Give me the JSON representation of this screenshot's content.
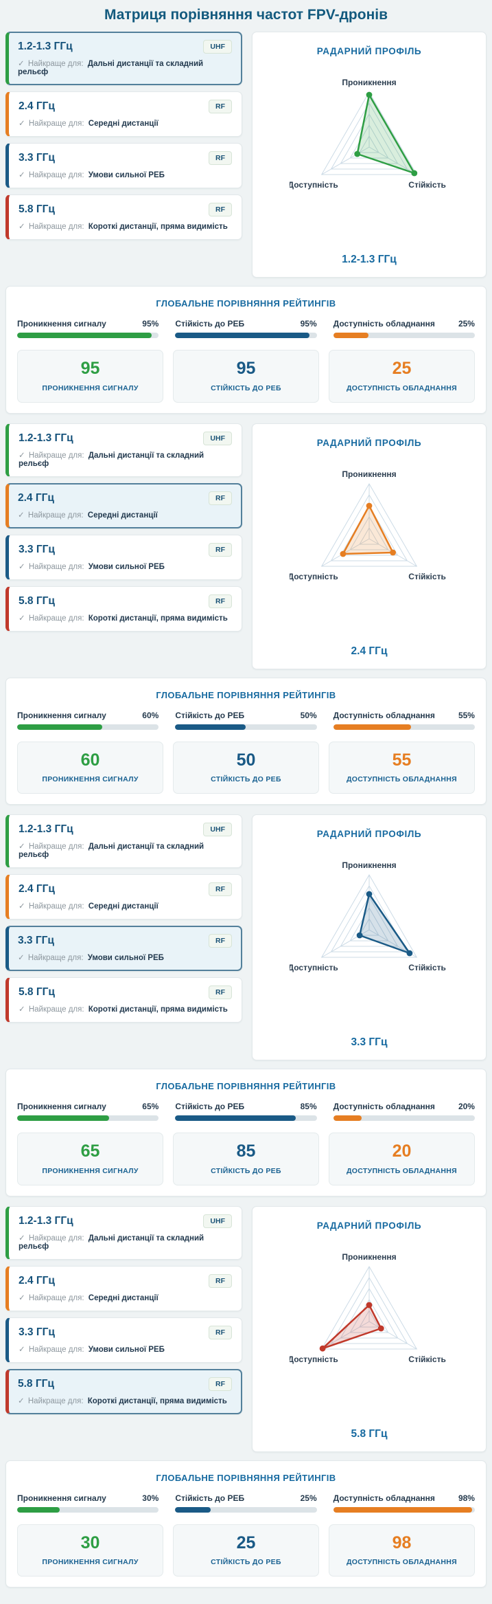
{
  "page_title": "Матриця порівняння частот FPV-дронів",
  "check_glyph": "✓",
  "best_for_label": "Найкраще для:",
  "frequencies": [
    {
      "label": "1.2-1.3 ГГц",
      "badge": "UHF",
      "best_for": "Дальні дистанції та складний рельєф",
      "accent": "#2e9e44"
    },
    {
      "label": "2.4 ГГц",
      "badge": "RF",
      "best_for": "Середні дистанції",
      "accent": "#e67e22"
    },
    {
      "label": "3.3 ГГц",
      "badge": "RF",
      "best_for": "Умови сильної РЕБ",
      "accent": "#1a5a86"
    },
    {
      "label": "5.8 ГГц",
      "badge": "RF",
      "best_for": "Короткі дистанції, пряма видимість",
      "accent": "#c0392b"
    }
  ],
  "radar_panel": {
    "title": "РАДАРНИЙ ПРОФІЛЬ",
    "axis_labels": {
      "top": "Проникнення",
      "right": "Стійкість",
      "left": "Доступність"
    },
    "grid_levels": 5,
    "range": [
      0,
      100
    ],
    "grid_color": "#ccdbe6"
  },
  "global_panel": {
    "title": "ГЛОБАЛЬНЕ ПОРІВНЯННЯ РЕЙТИНГІВ",
    "metrics": [
      {
        "label": "Проникнення сигналу",
        "color": "#2e9e44"
      },
      {
        "label": "Стійкість до РЕБ",
        "color": "#1a5a86"
      },
      {
        "label": "Доступність обладнання",
        "color": "#e67e22"
      }
    ],
    "stat_labels": [
      "ПРОНИКНЕННЯ СИГНАЛУ",
      "СТІЙКІСТЬ ДО РЕБ",
      "ДОСТУПНІСТЬ ОБЛАДНАННЯ"
    ]
  },
  "sections": [
    {
      "selected_index": 0,
      "ratings": [
        95,
        95,
        25
      ]
    },
    {
      "selected_index": 1,
      "ratings": [
        60,
        50,
        55
      ]
    },
    {
      "selected_index": 2,
      "ratings": [
        65,
        85,
        20
      ]
    },
    {
      "selected_index": 3,
      "ratings": [
        30,
        25,
        98
      ]
    }
  ],
  "chart_data": [
    {
      "type": "radar",
      "title": "РАДАРНИЙ ПРОФІЛЬ",
      "subtitle": "1.2-1.3 ГГц",
      "categories": [
        "Проникнення",
        "Стійкість",
        "Доступність"
      ],
      "values": [
        95,
        95,
        25
      ],
      "range": [
        0,
        100
      ],
      "color": "#2e9e44",
      "grid": true,
      "legend": false
    },
    {
      "type": "radar",
      "title": "РАДАРНИЙ ПРОФІЛЬ",
      "subtitle": "2.4 ГГц",
      "categories": [
        "Проникнення",
        "Стійкість",
        "Доступність"
      ],
      "values": [
        60,
        50,
        55
      ],
      "range": [
        0,
        100
      ],
      "color": "#e67e22",
      "grid": true,
      "legend": false
    },
    {
      "type": "radar",
      "title": "РАДАРНИЙ ПРОФІЛЬ",
      "subtitle": "3.3 ГГц",
      "categories": [
        "Проникнення",
        "Стійкість",
        "Доступність"
      ],
      "values": [
        65,
        85,
        20
      ],
      "range": [
        0,
        100
      ],
      "color": "#1a5a86",
      "grid": true,
      "legend": false
    },
    {
      "type": "radar",
      "title": "РАДАРНИЙ ПРОФІЛЬ",
      "subtitle": "5.8 ГГц",
      "categories": [
        "Проникнення",
        "Стійкість",
        "Доступність"
      ],
      "values": [
        30,
        25,
        98
      ],
      "range": [
        0,
        100
      ],
      "color": "#c0392b",
      "grid": true,
      "legend": false
    },
    {
      "type": "bar",
      "title": "ГЛОБАЛЬНЕ ПОРІВНЯННЯ РЕЙТИНГІВ",
      "subtitle": "1.2-1.3 ГГц",
      "categories": [
        "Проникнення сигналу",
        "Стійкість до РЕБ",
        "Доступність обладнання"
      ],
      "values": [
        95,
        95,
        25
      ],
      "unit": "%",
      "ylim": [
        0,
        100
      ]
    },
    {
      "type": "bar",
      "title": "ГЛОБАЛЬНЕ ПОРІВНЯННЯ РЕЙТИНГІВ",
      "subtitle": "2.4 ГГц",
      "categories": [
        "Проникнення сигналу",
        "Стійкість до РЕБ",
        "Доступність обладнання"
      ],
      "values": [
        60,
        50,
        55
      ],
      "unit": "%",
      "ylim": [
        0,
        100
      ]
    },
    {
      "type": "bar",
      "title": "ГЛОБАЛЬНЕ ПОРІВНЯННЯ РЕЙТИНГІВ",
      "subtitle": "3.3 ГГц",
      "categories": [
        "Проникнення сигналу",
        "Стійкість до РЕБ",
        "Доступність обладнання"
      ],
      "values": [
        65,
        85,
        20
      ],
      "unit": "%",
      "ylim": [
        0,
        100
      ]
    },
    {
      "type": "bar",
      "title": "ГЛОБАЛЬНЕ ПОРІВНЯННЯ РЕЙТИНГІВ",
      "subtitle": "5.8 ГГц",
      "categories": [
        "Проникнення сигналу",
        "Стійкість до РЕБ",
        "Доступність обладнання"
      ],
      "values": [
        30,
        25,
        98
      ],
      "unit": "%",
      "ylim": [
        0,
        100
      ]
    }
  ]
}
